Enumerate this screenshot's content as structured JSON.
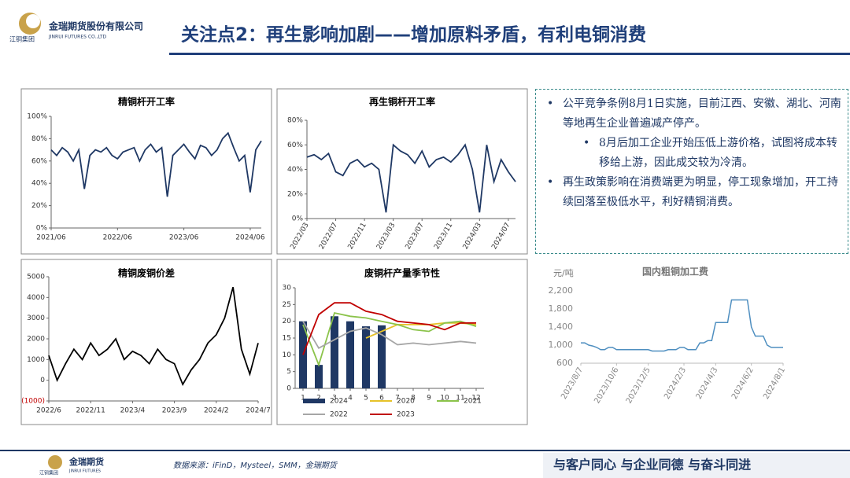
{
  "header": {
    "title": "关注点2：再生影响加剧——增加原料矛盾，有利电铜消费",
    "company": "金瑞期货股份有限公司",
    "company_en": "JINRUI FUTURES CO.,LTD",
    "group": "江铜集团"
  },
  "bullets": [
    {
      "text": "公平竞争条例8月1日实施，目前江西、安徽、湖北、河南等地再生企业普遍减产停产。",
      "sub": [
        "8月后加工企业开始压低上游价格，试图将成本转移给上游，因此成交较为冷清。"
      ]
    },
    {
      "text": "再生政策影响在消费端更为明显，停工现象增加，开工持续回落至极低水平，利好精铜消费。",
      "sub": []
    }
  ],
  "footer": {
    "source": "数据来源：iFinD，Mysteel，SMM，金瑞期货",
    "brand": "金瑞期货",
    "brand_en": "JINRUI FUTURES",
    "group": "江铜集团",
    "slogan": "与客户同心 与企业同德 与奋斗同进"
  },
  "chart_data": [
    {
      "type": "line",
      "title": "精铜杆开工率",
      "color": "#1f3864",
      "categories": [
        "2021/06",
        null,
        null,
        null,
        null,
        null,
        null,
        null,
        null,
        null,
        null,
        null,
        "2022/06",
        null,
        null,
        null,
        null,
        null,
        null,
        null,
        null,
        null,
        null,
        null,
        "2023/06",
        null,
        null,
        null,
        null,
        null,
        null,
        null,
        null,
        null,
        null,
        null,
        "2024/06",
        null,
        null
      ],
      "values": [
        70,
        65,
        72,
        68,
        60,
        70,
        35,
        65,
        70,
        68,
        72,
        65,
        62,
        68,
        70,
        72,
        60,
        70,
        75,
        68,
        72,
        28,
        65,
        70,
        75,
        68,
        62,
        74,
        72,
        65,
        70,
        80,
        85,
        72,
        60,
        65,
        32,
        70,
        78
      ],
      "ylim": [
        0,
        100
      ],
      "yticks": [
        {
          "value": 0,
          "label": "0%"
        },
        {
          "value": 20,
          "label": "20%"
        },
        {
          "value": 40,
          "label": "40%"
        },
        {
          "value": 60,
          "label": "60%"
        },
        {
          "value": 80,
          "label": "80%"
        },
        {
          "value": 100,
          "label": "100%"
        }
      ]
    },
    {
      "type": "line",
      "title": "再生铜杆开工率",
      "color": "#1f3864",
      "rotate_x_labels": true,
      "categories": [
        "2022/03",
        null,
        null,
        null,
        "2022/07",
        null,
        null,
        null,
        "2022/11",
        null,
        null,
        null,
        "2023/03",
        null,
        null,
        null,
        "2023/07",
        null,
        null,
        null,
        "2023/11",
        null,
        null,
        null,
        "2024/03",
        null,
        null,
        null,
        "2024/07",
        null
      ],
      "values": [
        50,
        52,
        48,
        53,
        38,
        35,
        45,
        48,
        42,
        45,
        40,
        5,
        60,
        55,
        52,
        45,
        55,
        42,
        48,
        50,
        46,
        52,
        60,
        40,
        5,
        60,
        30,
        48,
        38,
        30
      ],
      "ylim": [
        0,
        80
      ],
      "yticks": [
        {
          "value": 0,
          "label": "0%"
        },
        {
          "value": 20,
          "label": "20%"
        },
        {
          "value": 40,
          "label": "40%"
        },
        {
          "value": 60,
          "label": "60%"
        },
        {
          "value": 80,
          "label": "80%"
        }
      ]
    },
    {
      "type": "line",
      "title": "精铜废铜价差",
      "color": "#000000",
      "negative_tick_color": "#c00000",
      "categories": [
        "2022/6",
        null,
        null,
        null,
        null,
        "2022/11",
        null,
        null,
        null,
        null,
        "2023/4",
        null,
        null,
        null,
        null,
        "2023/9",
        null,
        null,
        null,
        null,
        "2024/2",
        null,
        null,
        null,
        null,
        "2024/7"
      ],
      "values": [
        1200,
        0,
        800,
        1500,
        1000,
        1800,
        1200,
        1500,
        2000,
        1000,
        1400,
        1200,
        800,
        1500,
        1000,
        800,
        -200,
        500,
        1000,
        1800,
        2200,
        3000,
        4500,
        1500,
        300,
        1800
      ],
      "ylim": [
        -1000,
        5000
      ],
      "yticks": [
        {
          "value": -1000,
          "label": "(1000)"
        },
        0,
        1000,
        2000,
        3000,
        4000,
        5000
      ]
    },
    {
      "type": "bar",
      "title": "废铜杆产量季节性",
      "categories": [
        "1",
        "2",
        "3",
        "4",
        "5",
        "6",
        "7",
        "8",
        "9",
        "10",
        "11",
        "12"
      ],
      "series": [
        {
          "name": "2024",
          "type": "bar",
          "color": "#1f3864",
          "values": [
            20,
            7,
            21.5,
            20,
            18.5,
            18.8,
            null,
            null,
            null,
            null,
            null,
            null
          ]
        },
        {
          "name": "2020",
          "type": "line",
          "color": "#e6c229",
          "values": [
            null,
            null,
            null,
            null,
            15,
            17,
            19,
            19,
            19,
            19.5,
            19.5,
            19
          ]
        },
        {
          "name": "2021",
          "type": "line",
          "color": "#8bc34a",
          "values": [
            19,
            7,
            22.5,
            21.5,
            21,
            20,
            19,
            17.5,
            17,
            19.5,
            20,
            18.5
          ]
        },
        {
          "name": "2022",
          "type": "line",
          "color": "#a6a6a6",
          "values": [
            20,
            12,
            14.5,
            17,
            18,
            16,
            13,
            13.5,
            13,
            13.5,
            14,
            13.5
          ]
        },
        {
          "name": "2023",
          "type": "line",
          "color": "#c00000",
          "values": [
            10,
            22,
            25.5,
            25.5,
            23,
            22,
            20,
            19.5,
            19,
            17.5,
            19.5,
            19.5
          ]
        }
      ],
      "ylim": [
        0,
        30
      ],
      "yticks": [
        0,
        5,
        10,
        15,
        20,
        25,
        30
      ]
    },
    {
      "type": "line",
      "title": "国内粗铜加工费",
      "y_label": "元/吨",
      "color": "#4f8fc0",
      "rotate_x_labels": true,
      "categories": [
        "2023/8/7",
        null,
        null,
        null,
        null,
        null,
        null,
        null,
        null,
        "2023/10/6",
        null,
        null,
        null,
        null,
        null,
        null,
        null,
        "2023/12/5",
        null,
        null,
        null,
        null,
        null,
        null,
        null,
        null,
        "2024/2/3",
        null,
        null,
        null,
        null,
        null,
        null,
        null,
        "2024/4/3",
        null,
        null,
        null,
        null,
        null,
        null,
        null,
        null,
        "2024/6/2",
        null,
        null,
        null,
        null,
        null,
        null,
        null,
        "2024/8/1"
      ],
      "values": [
        1050,
        1050,
        1000,
        980,
        950,
        900,
        900,
        950,
        950,
        900,
        900,
        900,
        900,
        900,
        900,
        900,
        900,
        900,
        870,
        870,
        870,
        870,
        900,
        900,
        900,
        950,
        950,
        900,
        900,
        900,
        1050,
        1050,
        1100,
        1100,
        1500,
        1500,
        1500,
        1500,
        2000,
        2000,
        2000,
        2000,
        2000,
        1400,
        1200,
        1200,
        1200,
        1000,
        950,
        950,
        950,
        950
      ],
      "ylim": [
        600,
        2200
      ],
      "yticks": [
        600,
        {
          "value": 1000,
          "label": "1,000"
        },
        {
          "value": 1400,
          "label": "1,400"
        },
        {
          "value": 1800,
          "label": "1,800"
        },
        {
          "value": 2200,
          "label": "2,200"
        }
      ]
    }
  ]
}
